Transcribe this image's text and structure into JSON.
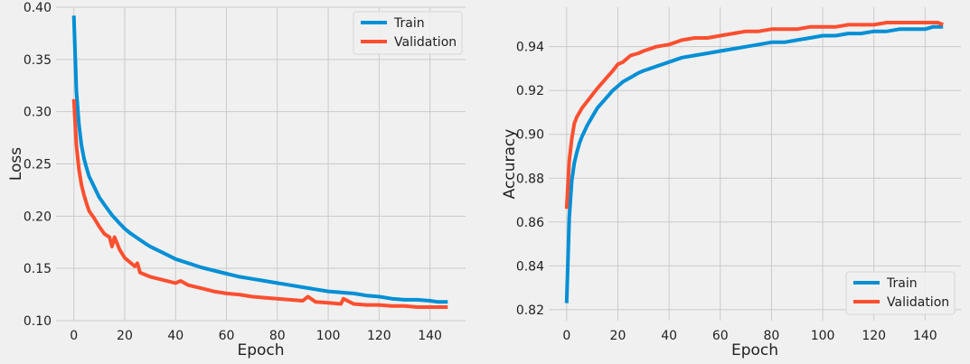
{
  "figure": {
    "background": "#f0f0f0",
    "grid_color": "#cbcbcb",
    "colors": {
      "train": "#008fd5",
      "validation": "#fc4f30"
    }
  },
  "chart_data": [
    {
      "type": "line",
      "title": "",
      "xlabel": "Epoch",
      "ylabel": "Loss",
      "xlim": [
        -7,
        154
      ],
      "ylim": [
        0.1,
        0.4
      ],
      "xticks": [
        0,
        20,
        40,
        60,
        80,
        100,
        120,
        140
      ],
      "yticks": [
        0.1,
        0.15,
        0.2,
        0.25,
        0.3,
        0.35,
        0.4
      ],
      "ytick_labels": [
        "0.10",
        "0.15",
        "0.20",
        "0.25",
        "0.30",
        "0.35",
        "0.40"
      ],
      "grid": true,
      "legend": "top-right",
      "series": [
        {
          "name": "Train",
          "color": "#008fd5",
          "x": [
            0,
            1,
            2,
            3,
            4,
            5,
            6,
            8,
            10,
            12,
            15,
            18,
            20,
            22,
            25,
            28,
            30,
            35,
            40,
            45,
            50,
            55,
            60,
            65,
            70,
            75,
            80,
            85,
            90,
            95,
            100,
            105,
            110,
            115,
            120,
            125,
            130,
            135,
            140,
            143,
            145,
            147
          ],
          "y": [
            0.392,
            0.32,
            0.288,
            0.268,
            0.255,
            0.246,
            0.238,
            0.228,
            0.218,
            0.211,
            0.201,
            0.193,
            0.188,
            0.184,
            0.179,
            0.174,
            0.171,
            0.165,
            0.159,
            0.155,
            0.151,
            0.148,
            0.145,
            0.142,
            0.14,
            0.138,
            0.136,
            0.134,
            0.132,
            0.13,
            0.128,
            0.127,
            0.126,
            0.124,
            0.123,
            0.121,
            0.12,
            0.12,
            0.119,
            0.118,
            0.118,
            0.118
          ]
        },
        {
          "name": "Validation",
          "color": "#fc4f30",
          "x": [
            0,
            1,
            2,
            3,
            4,
            5,
            6,
            8,
            10,
            12,
            14,
            15,
            16,
            18,
            20,
            22,
            24,
            25,
            26,
            28,
            30,
            35,
            40,
            42,
            45,
            50,
            55,
            60,
            65,
            70,
            75,
            80,
            85,
            90,
            92,
            95,
            100,
            105,
            106,
            110,
            115,
            120,
            125,
            130,
            135,
            140,
            145,
            147
          ],
          "y": [
            0.312,
            0.268,
            0.245,
            0.23,
            0.22,
            0.212,
            0.205,
            0.198,
            0.19,
            0.183,
            0.18,
            0.171,
            0.18,
            0.168,
            0.16,
            0.156,
            0.152,
            0.155,
            0.146,
            0.144,
            0.142,
            0.139,
            0.136,
            0.138,
            0.134,
            0.131,
            0.128,
            0.126,
            0.125,
            0.123,
            0.122,
            0.121,
            0.12,
            0.119,
            0.123,
            0.118,
            0.117,
            0.116,
            0.121,
            0.116,
            0.115,
            0.115,
            0.114,
            0.114,
            0.113,
            0.113,
            0.113,
            0.113
          ]
        }
      ]
    },
    {
      "type": "line",
      "title": "",
      "xlabel": "Epoch",
      "ylabel": "Accuracy",
      "xlim": [
        -7,
        154
      ],
      "ylim": [
        0.815,
        0.958
      ],
      "xticks": [
        0,
        20,
        40,
        60,
        80,
        100,
        120,
        140
      ],
      "yticks": [
        0.82,
        0.84,
        0.86,
        0.88,
        0.9,
        0.92,
        0.94
      ],
      "ytick_labels": [
        "0.82",
        "0.84",
        "0.86",
        "0.88",
        "0.90",
        "0.92",
        "0.94"
      ],
      "grid": true,
      "legend": "bottom-right",
      "series": [
        {
          "name": "Train",
          "color": "#008fd5",
          "x": [
            0,
            1,
            2,
            3,
            4,
            5,
            6,
            8,
            10,
            12,
            15,
            18,
            20,
            22,
            25,
            28,
            30,
            35,
            40,
            45,
            50,
            55,
            60,
            65,
            70,
            75,
            80,
            85,
            90,
            95,
            100,
            105,
            110,
            115,
            120,
            125,
            130,
            135,
            140,
            143,
            145,
            147
          ],
          "y": [
            0.823,
            0.862,
            0.879,
            0.887,
            0.892,
            0.896,
            0.899,
            0.904,
            0.908,
            0.912,
            0.916,
            0.92,
            0.922,
            0.924,
            0.926,
            0.928,
            0.929,
            0.931,
            0.933,
            0.935,
            0.936,
            0.937,
            0.938,
            0.939,
            0.94,
            0.941,
            0.942,
            0.942,
            0.943,
            0.944,
            0.945,
            0.945,
            0.946,
            0.946,
            0.947,
            0.947,
            0.948,
            0.948,
            0.948,
            0.949,
            0.949,
            0.949
          ]
        },
        {
          "name": "Validation",
          "color": "#fc4f30",
          "x": [
            0,
            1,
            2,
            3,
            4,
            5,
            6,
            8,
            10,
            12,
            15,
            18,
            20,
            22,
            25,
            28,
            30,
            35,
            40,
            45,
            50,
            55,
            60,
            65,
            70,
            75,
            80,
            85,
            90,
            95,
            100,
            105,
            110,
            115,
            120,
            125,
            130,
            135,
            140,
            143,
            145,
            147
          ],
          "y": [
            0.866,
            0.888,
            0.898,
            0.905,
            0.908,
            0.91,
            0.912,
            0.915,
            0.918,
            0.921,
            0.925,
            0.929,
            0.932,
            0.933,
            0.936,
            0.937,
            0.938,
            0.94,
            0.941,
            0.943,
            0.944,
            0.944,
            0.945,
            0.946,
            0.947,
            0.947,
            0.948,
            0.948,
            0.948,
            0.949,
            0.949,
            0.949,
            0.95,
            0.95,
            0.95,
            0.951,
            0.951,
            0.951,
            0.951,
            0.951,
            0.951,
            0.95
          ]
        }
      ]
    }
  ]
}
